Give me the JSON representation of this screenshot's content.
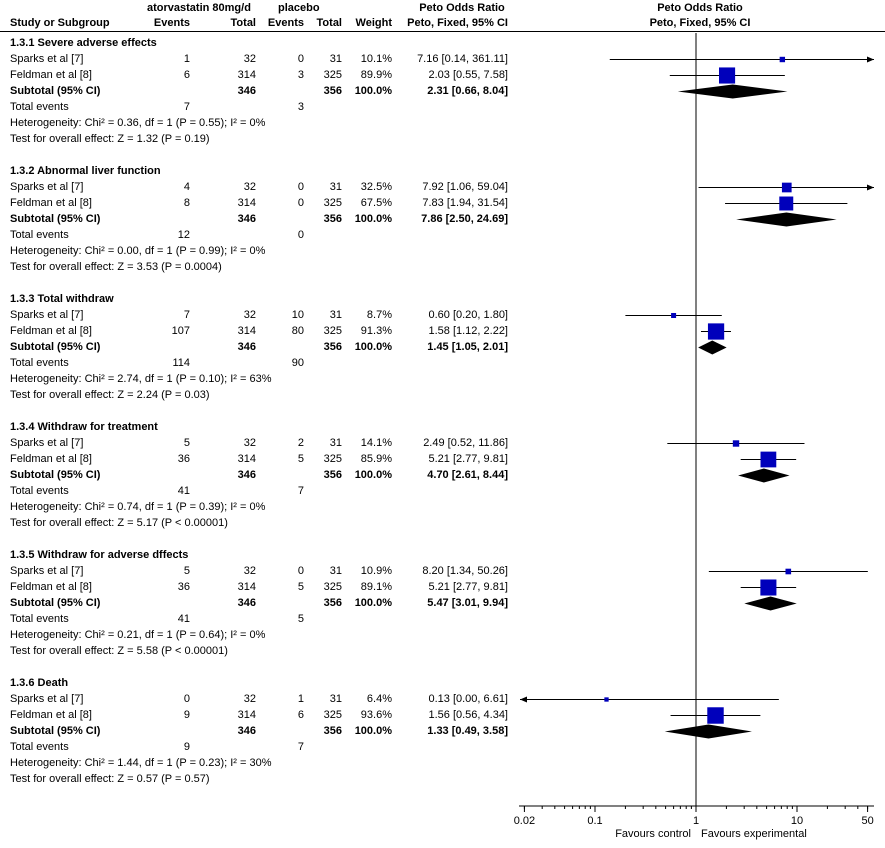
{
  "header": {
    "group1": "atorvastatin 80mg/d",
    "group2": "placebo",
    "study_col": "Study or Subgroup",
    "events1": "Events",
    "total1": "Total",
    "events2": "Events",
    "total2": "Total",
    "weight": "Weight",
    "or_title": "Peto Odds Ratio",
    "or_sub": "Peto, Fixed, 95% CI",
    "plot_title": "Peto Odds Ratio",
    "plot_sub": "Peto, Fixed, 95% CI"
  },
  "chart_data": {
    "type": "forest",
    "x_scale": "log",
    "xlim": [
      0.02,
      50
    ],
    "x_ticks": [
      "0.02",
      "0.1",
      "1",
      "10",
      "50"
    ],
    "x_tick_values": [
      0.02,
      0.1,
      1,
      10,
      50
    ],
    "xlabel_left": "Favours control",
    "xlabel_right": "Favours experimental",
    "groups": [
      {
        "title": "1.3.1 Severe adverse effects",
        "studies": [
          {
            "name": "Sparks et al [7]",
            "e1": "1",
            "n1": "32",
            "e2": "0",
            "n2": "31",
            "weight": "10.1%",
            "ci_text": "7.16 [0.14, 361.11]",
            "or": 7.16,
            "lo": 0.14,
            "hi": 361.11,
            "w": 10.1
          },
          {
            "name": "Feldman et al [8]",
            "e1": "6",
            "n1": "314",
            "e2": "3",
            "n2": "325",
            "weight": "89.9%",
            "ci_text": "2.03 [0.55, 7.58]",
            "or": 2.03,
            "lo": 0.55,
            "hi": 7.58,
            "w": 89.9
          }
        ],
        "subtotal": {
          "label": "Subtotal (95% CI)",
          "n1": "346",
          "n2": "356",
          "weight": "100.0%",
          "ci_text": "2.31 [0.66, 8.04]",
          "or": 2.31,
          "lo": 0.66,
          "hi": 8.04
        },
        "total_events": {
          "label": "Total events",
          "e1": "7",
          "e2": "3"
        },
        "heterogeneity": "Heterogeneity: Chi² = 0.36, df = 1 (P = 0.55); I² = 0%",
        "overall": "Test for overall effect: Z = 1.32 (P = 0.19)"
      },
      {
        "title": "1.3.2 Abnormal liver function",
        "studies": [
          {
            "name": "Sparks et al [7]",
            "e1": "4",
            "n1": "32",
            "e2": "0",
            "n2": "31",
            "weight": "32.5%",
            "ci_text": "7.92 [1.06, 59.04]",
            "or": 7.92,
            "lo": 1.06,
            "hi": 59.04,
            "w": 32.5
          },
          {
            "name": "Feldman et al [8]",
            "e1": "8",
            "n1": "314",
            "e2": "0",
            "n2": "325",
            "weight": "67.5%",
            "ci_text": "7.83 [1.94, 31.54]",
            "or": 7.83,
            "lo": 1.94,
            "hi": 31.54,
            "w": 67.5
          }
        ],
        "subtotal": {
          "label": "Subtotal (95% CI)",
          "n1": "346",
          "n2": "356",
          "weight": "100.0%",
          "ci_text": "7.86 [2.50, 24.69]",
          "or": 7.86,
          "lo": 2.5,
          "hi": 24.69
        },
        "total_events": {
          "label": "Total events",
          "e1": "12",
          "e2": "0"
        },
        "heterogeneity": "Heterogeneity: Chi² = 0.00, df = 1 (P = 0.99); I² = 0%",
        "overall": "Test for overall effect: Z = 3.53 (P = 0.0004)"
      },
      {
        "title": "1.3.3 Total withdraw",
        "studies": [
          {
            "name": "Sparks et al [7]",
            "e1": "7",
            "n1": "32",
            "e2": "10",
            "n2": "31",
            "weight": "8.7%",
            "ci_text": "0.60 [0.20, 1.80]",
            "or": 0.6,
            "lo": 0.2,
            "hi": 1.8,
            "w": 8.7
          },
          {
            "name": "Feldman et al [8]",
            "e1": "107",
            "n1": "314",
            "e2": "80",
            "n2": "325",
            "weight": "91.3%",
            "ci_text": "1.58 [1.12, 2.22]",
            "or": 1.58,
            "lo": 1.12,
            "hi": 2.22,
            "w": 91.3
          }
        ],
        "subtotal": {
          "label": "Subtotal (95% CI)",
          "n1": "346",
          "n2": "356",
          "weight": "100.0%",
          "ci_text": "1.45 [1.05, 2.01]",
          "or": 1.45,
          "lo": 1.05,
          "hi": 2.01
        },
        "total_events": {
          "label": "Total events",
          "e1": "114",
          "e2": "90"
        },
        "heterogeneity": "Heterogeneity: Chi² = 2.74, df = 1 (P = 0.10); I² = 63%",
        "overall": "Test for overall effect: Z = 2.24 (P = 0.03)"
      },
      {
        "title": "1.3.4 Withdraw for treatment",
        "studies": [
          {
            "name": "Sparks et al [7]",
            "e1": "5",
            "n1": "32",
            "e2": "2",
            "n2": "31",
            "weight": "14.1%",
            "ci_text": "2.49 [0.52, 11.86]",
            "or": 2.49,
            "lo": 0.52,
            "hi": 11.86,
            "w": 14.1
          },
          {
            "name": "Feldman et al [8]",
            "e1": "36",
            "n1": "314",
            "e2": "5",
            "n2": "325",
            "weight": "85.9%",
            "ci_text": "5.21 [2.77, 9.81]",
            "or": 5.21,
            "lo": 2.77,
            "hi": 9.81,
            "w": 85.9
          }
        ],
        "subtotal": {
          "label": "Subtotal (95% CI)",
          "n1": "346",
          "n2": "356",
          "weight": "100.0%",
          "ci_text": "4.70 [2.61, 8.44]",
          "or": 4.7,
          "lo": 2.61,
          "hi": 8.44
        },
        "total_events": {
          "label": "Total events",
          "e1": "41",
          "e2": "7"
        },
        "heterogeneity": "Heterogeneity: Chi² = 0.74, df = 1 (P = 0.39); I² = 0%",
        "overall": "Test for overall effect: Z = 5.17 (P < 0.00001)"
      },
      {
        "title": "1.3.5 Withdraw for adverse dffects",
        "studies": [
          {
            "name": "Sparks et al [7]",
            "e1": "5",
            "n1": "32",
            "e2": "0",
            "n2": "31",
            "weight": "10.9%",
            "ci_text": "8.20 [1.34, 50.26]",
            "or": 8.2,
            "lo": 1.34,
            "hi": 50.26,
            "w": 10.9
          },
          {
            "name": "Feldman et al [8]",
            "e1": "36",
            "n1": "314",
            "e2": "5",
            "n2": "325",
            "weight": "89.1%",
            "ci_text": "5.21 [2.77, 9.81]",
            "or": 5.21,
            "lo": 2.77,
            "hi": 9.81,
            "w": 89.1
          }
        ],
        "subtotal": {
          "label": "Subtotal (95% CI)",
          "n1": "346",
          "n2": "356",
          "weight": "100.0%",
          "ci_text": "5.47 [3.01, 9.94]",
          "or": 5.47,
          "lo": 3.01,
          "hi": 9.94
        },
        "total_events": {
          "label": "Total events",
          "e1": "41",
          "e2": "5"
        },
        "heterogeneity": "Heterogeneity: Chi² = 0.21, df = 1 (P = 0.64); I² = 0%",
        "overall": "Test for overall effect: Z = 5.58 (P < 0.00001)"
      },
      {
        "title": "1.3.6 Death",
        "studies": [
          {
            "name": "Sparks et al [7]",
            "e1": "0",
            "n1": "32",
            "e2": "1",
            "n2": "31",
            "weight": "6.4%",
            "ci_text": "0.13 [0.00, 6.61]",
            "or": 0.13,
            "lo": 0.002,
            "hi": 6.61,
            "w": 6.4
          },
          {
            "name": "Feldman et al [8]",
            "e1": "9",
            "n1": "314",
            "e2": "6",
            "n2": "325",
            "weight": "93.6%",
            "ci_text": "1.56 [0.56, 4.34]",
            "or": 1.56,
            "lo": 0.56,
            "hi": 4.34,
            "w": 93.6
          }
        ],
        "subtotal": {
          "label": "Subtotal (95% CI)",
          "n1": "346",
          "n2": "356",
          "weight": "100.0%",
          "ci_text": "1.33 [0.49, 3.58]",
          "or": 1.33,
          "lo": 0.49,
          "hi": 3.58
        },
        "total_events": {
          "label": "Total events",
          "e1": "9",
          "e2": "7"
        },
        "heterogeneity": "Heterogeneity: Chi² = 1.44, df = 1 (P = 0.23); I² = 30%",
        "overall": "Test for overall effect: Z = 0.57 (P = 0.57)"
      }
    ]
  },
  "colors": {
    "marker": "#0000bb",
    "line": "#000000",
    "diamond": "#000000"
  }
}
